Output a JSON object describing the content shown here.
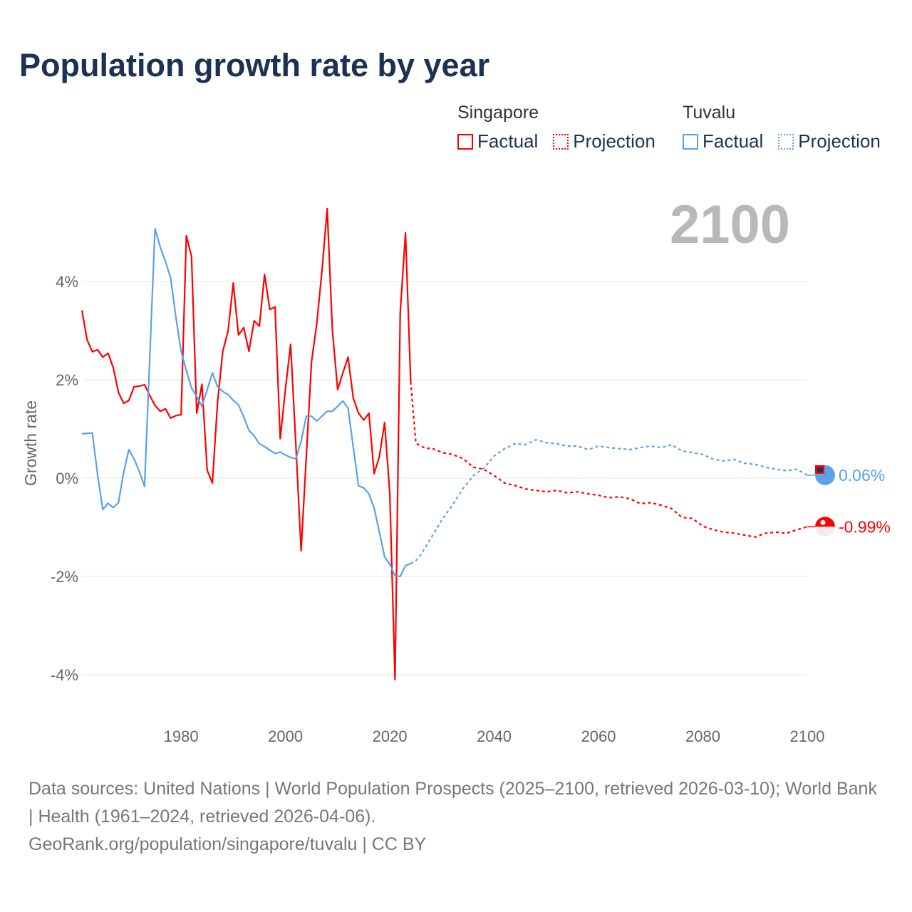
{
  "title": "Population growth rate by year",
  "big_year": "2100",
  "legend": {
    "groups": [
      {
        "name": "Singapore",
        "color": "#ff0000",
        "items": [
          "Factual",
          "Projection"
        ]
      },
      {
        "name": "Tuvalu",
        "color": "#5aa1e8",
        "items": [
          "Factual",
          "Projection"
        ]
      }
    ]
  },
  "chart_data": {
    "type": "line",
    "title": "Population growth rate by year",
    "xlabel": "",
    "ylabel": "Growth rate",
    "xlim": [
      1961,
      2100
    ],
    "ylim": [
      -5,
      6
    ],
    "x_ticks": [
      1980,
      2000,
      2020,
      2040,
      2060,
      2080,
      2100
    ],
    "y_ticks": [
      {
        "v": 4,
        "label": "4%"
      },
      {
        "v": 2,
        "label": "2%"
      },
      {
        "v": 0,
        "label": "0%"
      },
      {
        "v": -2,
        "label": "-2%"
      },
      {
        "v": -4,
        "label": "-4%"
      }
    ],
    "grid": true,
    "legend_position": "top-right",
    "series": [
      {
        "name": "Singapore Factual",
        "color": "#ff0000",
        "dashed": false,
        "x_start": 1961,
        "values": [
          3.41,
          2.81,
          2.57,
          2.61,
          2.46,
          2.54,
          2.25,
          1.74,
          1.52,
          1.58,
          1.86,
          1.87,
          1.9,
          1.68,
          1.48,
          1.36,
          1.41,
          1.22,
          1.27,
          1.29,
          4.93,
          4.51,
          1.32,
          1.91,
          0.16,
          -0.1,
          1.56,
          2.58,
          2.99,
          3.97,
          2.91,
          3.06,
          2.58,
          3.2,
          3.09,
          4.14,
          3.43,
          3.48,
          0.8,
          1.81,
          2.72,
          0.66,
          -1.48,
          0.44,
          2.36,
          3.14,
          4.22,
          5.48,
          3.01,
          1.8,
          2.14,
          2.46,
          1.63,
          1.32,
          1.18,
          1.32,
          0.09,
          0.44,
          1.13,
          -0.32,
          -4.1,
          3.36,
          4.99,
          1.96
        ]
      },
      {
        "name": "Singapore Projection",
        "color": "#ff0000",
        "dashed": true,
        "x": [
          2024,
          2025,
          2026,
          2027,
          2028,
          2030,
          2032,
          2034,
          2036,
          2038,
          2040,
          2042,
          2044,
          2046,
          2048,
          2050,
          2052,
          2054,
          2056,
          2058,
          2060,
          2062,
          2064,
          2066,
          2068,
          2070,
          2072,
          2074,
          2076,
          2078,
          2080,
          2082,
          2084,
          2086,
          2088,
          2090,
          2092,
          2094,
          2096,
          2098,
          2100
        ],
        "values": [
          1.96,
          0.71,
          0.65,
          0.6,
          0.61,
          0.52,
          0.48,
          0.4,
          0.22,
          0.18,
          0.05,
          -0.1,
          -0.15,
          -0.22,
          -0.25,
          -0.28,
          -0.25,
          -0.3,
          -0.28,
          -0.32,
          -0.35,
          -0.4,
          -0.38,
          -0.42,
          -0.52,
          -0.5,
          -0.55,
          -0.62,
          -0.8,
          -0.82,
          -0.98,
          -1.05,
          -1.1,
          -1.12,
          -1.16,
          -1.2,
          -1.12,
          -1.1,
          -1.12,
          -1.05,
          -0.99
        ]
      },
      {
        "name": "Tuvalu Factual",
        "color": "#5aa1e8",
        "dashed": false,
        "x_start": 1961,
        "values": [
          0.9,
          0.91,
          0.92,
          0.06,
          -0.64,
          -0.51,
          -0.6,
          -0.5,
          0.12,
          0.58,
          0.39,
          0.13,
          -0.17,
          2.45,
          5.07,
          4.7,
          4.41,
          4.07,
          3.28,
          2.58,
          2.19,
          1.83,
          1.66,
          1.46,
          1.8,
          2.14,
          1.86,
          1.76,
          1.7,
          1.58,
          1.49,
          1.25,
          0.97,
          0.86,
          0.7,
          0.64,
          0.57,
          0.5,
          0.53,
          0.47,
          0.42,
          0.39,
          0.75,
          1.26,
          1.26,
          1.16,
          1.26,
          1.36,
          1.36,
          1.46,
          1.57,
          1.42,
          0.63,
          -0.16,
          -0.2,
          -0.32,
          -0.61,
          -1.1,
          -1.6,
          -1.75,
          -1.99,
          -2.0,
          -1.78,
          -1.74
        ]
      },
      {
        "name": "Tuvalu Projection",
        "color": "#5aa1e8",
        "dashed": true,
        "x": [
          2024,
          2025,
          2026,
          2028,
          2030,
          2032,
          2034,
          2036,
          2038,
          2040,
          2042,
          2044,
          2046,
          2048,
          2050,
          2052,
          2054,
          2056,
          2058,
          2060,
          2062,
          2064,
          2066,
          2068,
          2070,
          2072,
          2074,
          2076,
          2078,
          2080,
          2082,
          2084,
          2086,
          2088,
          2090,
          2092,
          2094,
          2096,
          2098,
          2100
        ],
        "values": [
          -1.74,
          -1.68,
          -1.55,
          -1.2,
          -0.85,
          -0.55,
          -0.22,
          0.05,
          0.2,
          0.45,
          0.6,
          0.7,
          0.68,
          0.78,
          0.72,
          0.7,
          0.65,
          0.65,
          0.58,
          0.65,
          0.62,
          0.6,
          0.58,
          0.62,
          0.65,
          0.62,
          0.68,
          0.55,
          0.52,
          0.48,
          0.38,
          0.35,
          0.38,
          0.3,
          0.28,
          0.22,
          0.18,
          0.15,
          0.18,
          0.06
        ]
      }
    ],
    "end_labels": [
      {
        "country": "Tuvalu",
        "label": "0.06%",
        "value": 0.06,
        "color": "#5aa1e8"
      },
      {
        "country": "Singapore",
        "label": "-0.99%",
        "value": -0.99,
        "color": "#ff0000"
      }
    ]
  },
  "footer": {
    "sources": "Data sources: United Nations | World Population Prospects (2025–2100, retrieved 2026-03-10); World Bank | Health (1961–2024, retrieved 2026-04-06).",
    "attribution": "GeoRank.org/population/singapore/tuvalu | CC BY"
  }
}
